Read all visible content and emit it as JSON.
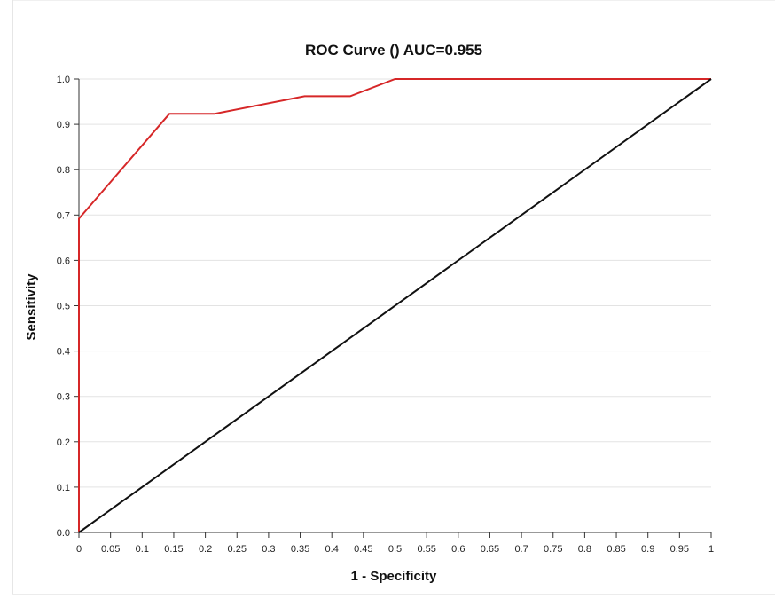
{
  "chart_data": {
    "type": "line",
    "title": "ROC Curve () AUC=0.955",
    "xlabel": "1 - Specificity",
    "ylabel": "Sensitivity",
    "xlim": [
      0,
      1
    ],
    "ylim": [
      0,
      1
    ],
    "x_ticks": [
      {
        "value": 0,
        "label": "0"
      },
      {
        "value": 0.05,
        "label": "0.05"
      },
      {
        "value": 0.1,
        "label": "0.1"
      },
      {
        "value": 0.15,
        "label": "0.15"
      },
      {
        "value": 0.2,
        "label": "0.2"
      },
      {
        "value": 0.25,
        "label": "0.25"
      },
      {
        "value": 0.3,
        "label": "0.3"
      },
      {
        "value": 0.35,
        "label": "0.35"
      },
      {
        "value": 0.4,
        "label": "0.4"
      },
      {
        "value": 0.45,
        "label": "0.45"
      },
      {
        "value": 0.5,
        "label": "0.5"
      },
      {
        "value": 0.55,
        "label": "0.55"
      },
      {
        "value": 0.6,
        "label": "0.6"
      },
      {
        "value": 0.65,
        "label": "0.65"
      },
      {
        "value": 0.7,
        "label": "0.7"
      },
      {
        "value": 0.75,
        "label": "0.75"
      },
      {
        "value": 0.8,
        "label": "0.8"
      },
      {
        "value": 0.85,
        "label": "0.85"
      },
      {
        "value": 0.9,
        "label": "0.9"
      },
      {
        "value": 0.95,
        "label": "0.95"
      },
      {
        "value": 1,
        "label": "1"
      }
    ],
    "y_ticks": [
      {
        "value": 0,
        "label": "0.0"
      },
      {
        "value": 0.1,
        "label": "0.1"
      },
      {
        "value": 0.2,
        "label": "0.2"
      },
      {
        "value": 0.3,
        "label": "0.3"
      },
      {
        "value": 0.4,
        "label": "0.4"
      },
      {
        "value": 0.5,
        "label": "0.5"
      },
      {
        "value": 0.6,
        "label": "0.6"
      },
      {
        "value": 0.7,
        "label": "0.7"
      },
      {
        "value": 0.8,
        "label": "0.8"
      },
      {
        "value": 0.9,
        "label": "0.9"
      },
      {
        "value": 1,
        "label": "1.0"
      }
    ],
    "grid": "horizontal",
    "series": [
      {
        "color": "#d62728",
        "x": [
          0,
          0,
          0.143,
          0.214,
          0.357,
          0.429,
          0.5,
          1
        ],
        "y": [
          0,
          0.692,
          0.923,
          0.923,
          0.962,
          0.962,
          1.0,
          1.0
        ]
      },
      {
        "color": "#111111",
        "x": [
          0,
          1
        ],
        "y": [
          0,
          1
        ]
      }
    ]
  }
}
